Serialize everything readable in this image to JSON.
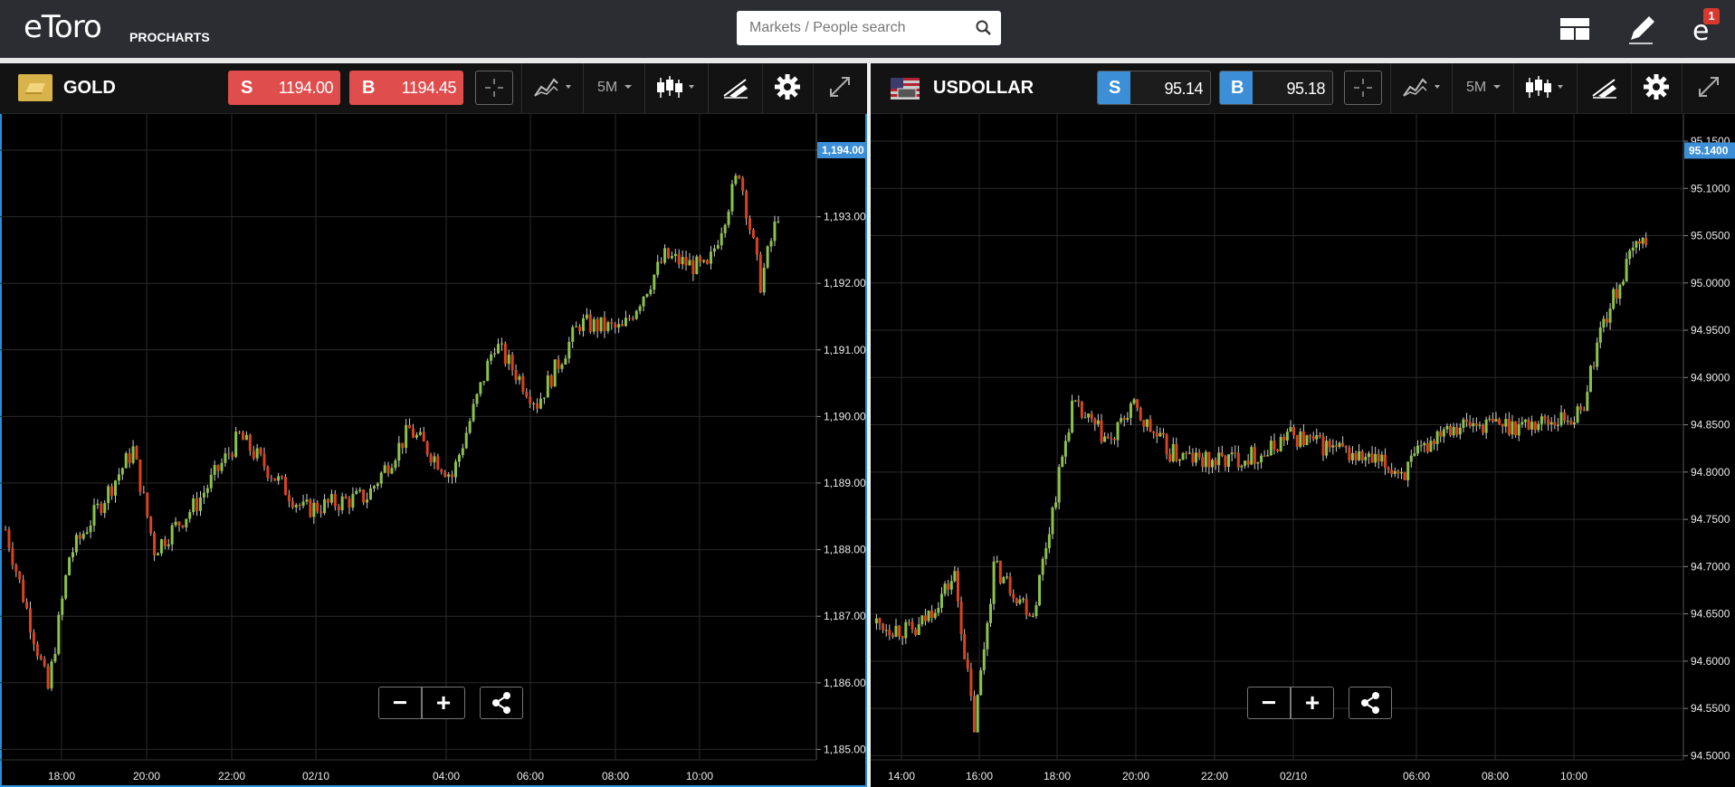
{
  "header": {
    "logo_text": "eToro",
    "logo_sub": "PROCHARTS",
    "search_placeholder": "Markets / People search",
    "notification_count": "1",
    "icons": [
      "search-icon",
      "layout-icon",
      "edit-pencil-icon",
      "notifications-icon"
    ]
  },
  "panels": [
    {
      "instrument": "GOLD",
      "instrument_icon": "gold-bar-icon",
      "sell_label": "S",
      "sell_price": "1194.00",
      "buy_label": "B",
      "buy_price": "1194.45",
      "price_button_color": "#e04d4d",
      "timeframe": "5M",
      "current_price_tag": "1,194.00",
      "tools": [
        "crosshair-icon",
        "indicators-icon",
        "timeframe-dropdown",
        "candlestick-icon",
        "draw-tools-icon",
        "gear-icon",
        "expand-icon"
      ],
      "zoom": {
        "minus": "−",
        "plus": "+"
      }
    },
    {
      "instrument": "USDOLLAR",
      "instrument_icon": "us-flag-icon",
      "sell_label": "S",
      "sell_price": "95.14",
      "buy_label": "B",
      "buy_price": "95.18",
      "price_button_color": "#3c8fd6",
      "timeframe": "5M",
      "current_price_tag": "95.1400",
      "tools": [
        "crosshair-icon",
        "indicators-icon",
        "timeframe-dropdown",
        "candlestick-icon",
        "draw-tools-icon",
        "gear-icon",
        "expand-icon"
      ],
      "zoom": {
        "minus": "−",
        "plus": "+"
      }
    }
  ],
  "chart_data": [
    {
      "type": "candlestick",
      "title": "GOLD",
      "timeframe": "5M",
      "x_tick_labels": [
        "18:00",
        "20:00",
        "22:00",
        "02/10",
        "04:00",
        "06:00",
        "08:00",
        "10:00"
      ],
      "y_tick_labels": [
        "1,194.00",
        "1,193.00",
        "1,192.00",
        "1,191.00",
        "1,190.00",
        "1,189.00",
        "1,188.00",
        "1,187.00",
        "1,186.00",
        "1,185.00"
      ],
      "ylim": [
        1185.0,
        1194.0
      ],
      "current_price": 1194.0,
      "grid": true,
      "up_color": "#8bc34a",
      "down_color": "#d9431e",
      "approx_close_path": [
        {
          "t": "16:30",
          "close": 1188.3
        },
        {
          "t": "17:30",
          "close": 1185.9
        },
        {
          "t": "18:00",
          "close": 1187.9
        },
        {
          "t": "19:30",
          "close": 1189.5
        },
        {
          "t": "20:00",
          "close": 1188.0
        },
        {
          "t": "21:00",
          "close": 1188.7
        },
        {
          "t": "22:00",
          "close": 1189.7
        },
        {
          "t": "23:30",
          "close": 1188.6
        },
        {
          "t": "01:00",
          "close": 1188.8
        },
        {
          "t": "02:00",
          "close": 1189.8
        },
        {
          "t": "03:00",
          "close": 1189.1
        },
        {
          "t": "04:00",
          "close": 1191.1
        },
        {
          "t": "05:00",
          "close": 1190.2
        },
        {
          "t": "06:00",
          "close": 1191.4
        },
        {
          "t": "07:00",
          "close": 1191.3
        },
        {
          "t": "08:00",
          "close": 1192.4
        },
        {
          "t": "09:00",
          "close": 1192.2
        },
        {
          "t": "09:45",
          "close": 1193.7
        },
        {
          "t": "10:15",
          "close": 1192.0
        },
        {
          "t": "11:00",
          "close": 1193.9
        }
      ]
    },
    {
      "type": "candlestick",
      "title": "USDOLLAR",
      "timeframe": "5M",
      "x_tick_labels": [
        "14:00",
        "16:00",
        "18:00",
        "20:00",
        "22:00",
        "02/10",
        "06:00",
        "08:00",
        "10:00"
      ],
      "y_tick_labels": [
        "95.1500",
        "95.1000",
        "95.0500",
        "95.0000",
        "94.9500",
        "94.9000",
        "94.8500",
        "94.8000",
        "94.7500",
        "94.7000",
        "94.6500",
        "94.6000",
        "94.5500",
        "94.5000"
      ],
      "ylim": [
        94.5,
        95.15
      ],
      "current_price": 95.14,
      "grid": true,
      "up_color": "#8bc34a",
      "down_color": "#d9431e",
      "approx_close_path": [
        {
          "t": "13:30",
          "close": 94.64
        },
        {
          "t": "14:30",
          "close": 94.63
        },
        {
          "t": "15:30",
          "close": 94.69
        },
        {
          "t": "16:00",
          "close": 94.53
        },
        {
          "t": "16:30",
          "close": 94.7
        },
        {
          "t": "17:30",
          "close": 94.65
        },
        {
          "t": "18:30",
          "close": 94.87
        },
        {
          "t": "19:30",
          "close": 94.83
        },
        {
          "t": "20:00",
          "close": 94.87
        },
        {
          "t": "21:00",
          "close": 94.82
        },
        {
          "t": "22:00",
          "close": 94.81
        },
        {
          "t": "23:30",
          "close": 94.82
        },
        {
          "t": "02/10",
          "close": 94.84
        },
        {
          "t": "03:00",
          "close": 94.8
        },
        {
          "t": "04:00",
          "close": 94.85
        },
        {
          "t": "06:00",
          "close": 94.85
        },
        {
          "t": "07:30",
          "close": 94.86
        },
        {
          "t": "08:00",
          "close": 94.95
        },
        {
          "t": "09:00",
          "close": 95.05
        },
        {
          "t": "09:45",
          "close": 95.0
        },
        {
          "t": "10:30",
          "close": 95.07
        },
        {
          "t": "11:00",
          "close": 95.14
        }
      ]
    }
  ]
}
